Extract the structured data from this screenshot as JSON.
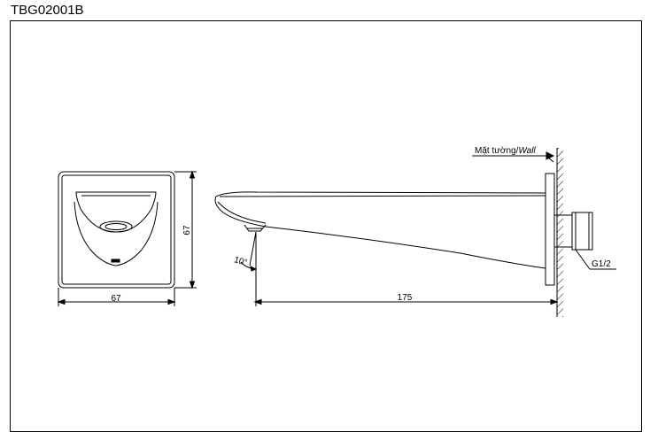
{
  "title": "TBG02001B",
  "front_view": {
    "width_dim": "67",
    "height_dim": "67"
  },
  "side_view": {
    "wall_label_vi": "Mặt tường/",
    "wall_label_en": "Wall",
    "angle_label": "10°",
    "length_dim": "175",
    "thread_label": "G1/2"
  }
}
